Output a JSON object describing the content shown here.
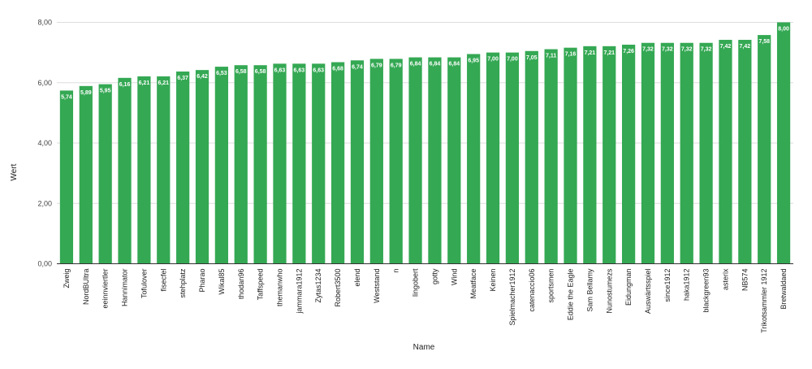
{
  "chart_data": {
    "type": "bar",
    "xlabel": "Name",
    "ylabel": "Wert",
    "ylim": [
      0,
      8
    ],
    "yticks": [
      "0,00",
      "2,00",
      "4,00",
      "6,00",
      "8,00"
    ],
    "grid": true,
    "bar_color": "#34a853",
    "categories": [
      "Zweig",
      "NordBUltra",
      "eeinnviertler",
      "Hannimator",
      "Tofulover",
      "fisecfel",
      "stehplatz",
      "Pharao",
      "Wikal85",
      "thodan96",
      "Taffspeed",
      "themanwho",
      "jammara1912",
      "Zytas1234",
      "Robert3500",
      "elend",
      "Weststand",
      "n",
      "lingobert",
      "gotty",
      "Wind",
      "Meatface",
      "Keinen",
      "Spielmacher1912",
      "catenaccio06",
      "sportsmen",
      "Eddie the Eagle",
      "Sam Bellamy",
      "Nunostumezs",
      "Eidungman",
      "Auswärtsspiel",
      "since1912",
      "haka1912",
      "blackgreen93",
      "asterix",
      "NB574",
      "Trikotsammler 1912",
      "Bretwaldaed"
    ],
    "values": [
      5.74,
      5.89,
      5.95,
      6.16,
      6.21,
      6.21,
      6.37,
      6.42,
      6.53,
      6.58,
      6.58,
      6.63,
      6.63,
      6.63,
      6.68,
      6.74,
      6.79,
      6.79,
      6.84,
      6.84,
      6.84,
      6.95,
      7.0,
      7.0,
      7.05,
      7.11,
      7.16,
      7.21,
      7.21,
      7.26,
      7.32,
      7.32,
      7.32,
      7.32,
      7.42,
      7.42,
      7.58,
      8.0
    ],
    "labels": [
      "5,74",
      "5,89",
      "5,95",
      "6,16",
      "6,21",
      "6,21",
      "6,37",
      "6,42",
      "6,53",
      "6,58",
      "6,58",
      "6,63",
      "6,63",
      "6,63",
      "6,68",
      "6,74",
      "6,79",
      "6,79",
      "6,84",
      "6,84",
      "6,84",
      "6,95",
      "7,00",
      "7,00",
      "7,05",
      "7,11",
      "7,16",
      "7,21",
      "7,21",
      "7,26",
      "7,32",
      "7,32",
      "7,32",
      "7,32",
      "7,42",
      "7,42",
      "7,58",
      "8,00"
    ]
  }
}
